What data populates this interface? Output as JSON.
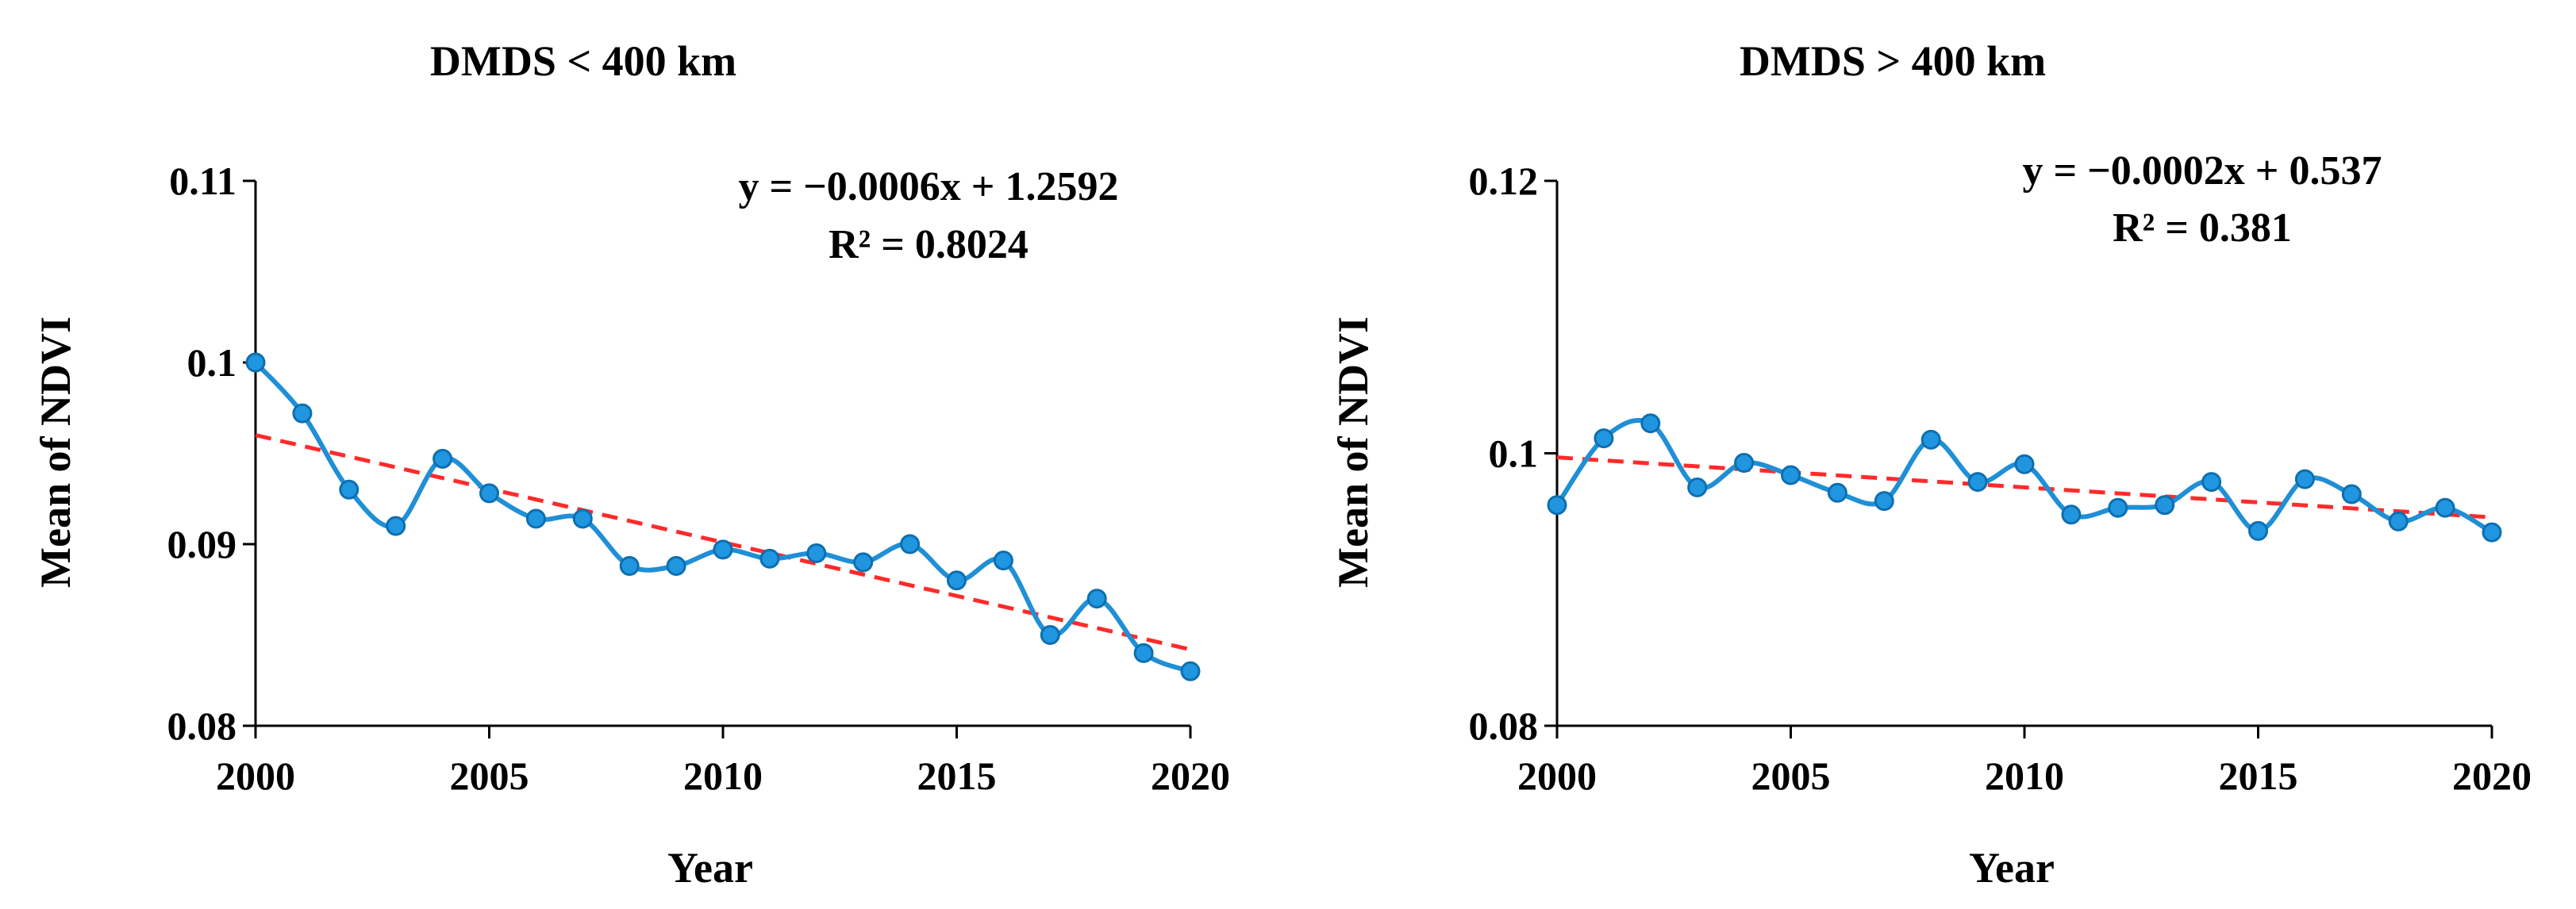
{
  "colors": {
    "series": "#1f8fd6",
    "marker_fill": "#2196e0",
    "marker_stroke": "#0d6fb0",
    "trend": "#ff2a2a",
    "axis": "#000000"
  },
  "chart_data": [
    {
      "type": "line",
      "title": "DMDS < 400 km",
      "xlabel": "Year",
      "ylabel": "Mean of NDVI",
      "xlim": [
        2000,
        2020
      ],
      "ylim": [
        0.08,
        0.11
      ],
      "xticks": [
        2000,
        2005,
        2010,
        2015,
        2020
      ],
      "xtick_labels": [
        "2000",
        "2005",
        "2010",
        "2015",
        "2020"
      ],
      "yticks": [
        0.08,
        0.09,
        0.1,
        0.11
      ],
      "ytick_labels": [
        "0.08",
        "0.09",
        "0.1",
        "0.11"
      ],
      "x": [
        2000,
        2001,
        2002,
        2003,
        2004,
        2005,
        2006,
        2007,
        2008,
        2009,
        2010,
        2011,
        2012,
        2013,
        2014,
        2015,
        2016,
        2017,
        2018,
        2019,
        2020
      ],
      "values": [
        0.1,
        0.0972,
        0.093,
        0.091,
        0.0947,
        0.0928,
        0.0914,
        0.0914,
        0.0888,
        0.0888,
        0.0897,
        0.0892,
        0.0895,
        0.089,
        0.09,
        0.088,
        0.0891,
        0.085,
        0.087,
        0.084,
        0.083
      ],
      "trend": {
        "slope": -0.0006,
        "intercept": 1.2592,
        "y_start": 0.096,
        "y_end": 0.0842
      },
      "equation": "y = −0.0006x + 1.2592",
      "r2": "R² = 0.8024"
    },
    {
      "type": "line",
      "title": "DMDS > 400 km",
      "xlabel": "Year",
      "ylabel": "Mean of NDVI",
      "xlim": [
        2000,
        2020
      ],
      "ylim": [
        0.08,
        0.12
      ],
      "xticks": [
        2000,
        2005,
        2010,
        2015,
        2020
      ],
      "xtick_labels": [
        "2000",
        "2005",
        "2010",
        "2015",
        "2020"
      ],
      "yticks": [
        0.08,
        0.1,
        0.12
      ],
      "ytick_labels": [
        "0.08",
        "0.1",
        "0.12"
      ],
      "x": [
        2000,
        2001,
        2002,
        2003,
        2004,
        2005,
        2006,
        2007,
        2008,
        2009,
        2010,
        2011,
        2012,
        2013,
        2014,
        2015,
        2016,
        2017,
        2018,
        2019,
        2020
      ],
      "values": [
        0.0962,
        0.1011,
        0.1022,
        0.0975,
        0.0993,
        0.0984,
        0.0971,
        0.0965,
        0.101,
        0.0979,
        0.0992,
        0.0955,
        0.096,
        0.0962,
        0.0979,
        0.0943,
        0.0981,
        0.097,
        0.095,
        0.096,
        0.0942
      ],
      "trend": {
        "slope": -0.0002,
        "intercept": 0.537,
        "y_start": 0.0997,
        "y_end": 0.0953
      },
      "equation": "y = −0.0002x + 0.537",
      "r2": "R² = 0.381"
    }
  ]
}
